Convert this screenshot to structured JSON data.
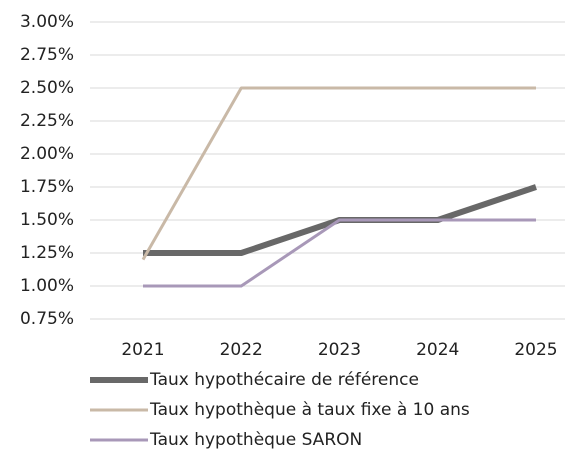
{
  "chart_data": {
    "type": "line",
    "categories": [
      "2021",
      "2022",
      "2023",
      "2024",
      "2025"
    ],
    "series": [
      {
        "name": "Taux hypothécaire de référence",
        "color": "#686868",
        "values": [
          1.25,
          1.25,
          1.5,
          1.5,
          1.75
        ]
      },
      {
        "name": "Taux hypothèque à taux fixe à 10 ans",
        "color": "#c9b9a7",
        "values": [
          1.2,
          2.5,
          2.5,
          2.5,
          2.5
        ]
      },
      {
        "name": "Taux hypothèque SARON",
        "color": "#a898b8",
        "values": [
          1.0,
          1.0,
          1.5,
          1.5,
          1.5
        ]
      }
    ],
    "ylim": [
      0.75,
      3.0
    ],
    "yticks": [
      {
        "value": 0.75,
        "label": "0.75%"
      },
      {
        "value": 1.0,
        "label": "1.00%"
      },
      {
        "value": 1.25,
        "label": "1.25%"
      },
      {
        "value": 1.5,
        "label": "1.50%"
      },
      {
        "value": 1.75,
        "label": "1.75%"
      },
      {
        "value": 2.0,
        "label": "2.00%"
      },
      {
        "value": 2.25,
        "label": "2.25%"
      },
      {
        "value": 2.5,
        "label": "2.50%"
      },
      {
        "value": 2.75,
        "label": "2.75%"
      },
      {
        "value": 3.0,
        "label": "3.00%"
      }
    ],
    "grid": true
  }
}
